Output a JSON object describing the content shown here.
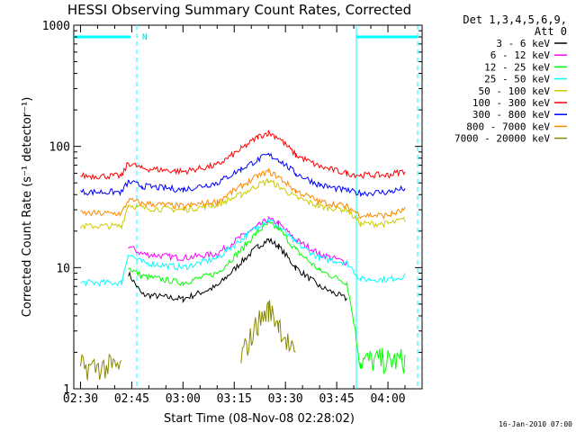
{
  "chart_data": {
    "type": "line",
    "title": "HESSI Observing Summary Count Rates, Corrected",
    "xlabel": "Start Time (08-Nov-08 02:28:02)",
    "ylabel": "Corrected Count Rate (s⁻¹ detector⁻¹)",
    "y_scale": "log",
    "ylim": [
      1,
      1000
    ],
    "xlim": [
      "02:28:02",
      "04:10:00"
    ],
    "x_ticks": [
      "02:30",
      "02:45",
      "03:00",
      "03:15",
      "03:30",
      "03:45",
      "04:00"
    ],
    "y_ticks": [
      "1",
      "10",
      "100",
      "1000"
    ],
    "legend_header": [
      "Det 1,3,4,5,6,9,",
      "Att 0"
    ],
    "legend_position": "right",
    "timestamp": "16-Jan-2010 07:00",
    "marker_label": "N",
    "x_time": [
      "02:30",
      "02:42",
      "02:44",
      "02:48",
      "03:00",
      "03:10",
      "03:17",
      "03:22",
      "03:25",
      "03:28",
      "03:33",
      "03:40",
      "03:48",
      "03:52",
      "04:00",
      "04:05"
    ],
    "series": [
      {
        "name": "3 - 6 keV",
        "color": "#000000",
        "values": [
          null,
          null,
          9,
          6,
          5.5,
          7,
          11,
          15,
          17,
          15,
          10,
          7,
          5.5,
          null,
          null,
          null
        ]
      },
      {
        "name": "6 - 12 keV",
        "color": "#ff00ff",
        "values": [
          null,
          null,
          15,
          13,
          12,
          13,
          18,
          22,
          25,
          23,
          17,
          13,
          11,
          null,
          null,
          null
        ]
      },
      {
        "name": "12 - 25 keV",
        "color": "#00ff00",
        "values": [
          null,
          null,
          10,
          8.5,
          7.5,
          9,
          14,
          20,
          23,
          21,
          14,
          9.5,
          7.5,
          1.7,
          1.7,
          1.7
        ]
      },
      {
        "name": "25 - 50 keV",
        "color": "#00ffff",
        "values": [
          7.5,
          7.5,
          13,
          11,
          10,
          12,
          17,
          22,
          25,
          22,
          16,
          12,
          11,
          8,
          8,
          8.5
        ]
      },
      {
        "name": "50 - 100 keV",
        "color": "#cccc00",
        "values": [
          22,
          22,
          33,
          31,
          30,
          33,
          40,
          48,
          52,
          47,
          38,
          32,
          30,
          23,
          23,
          25
        ]
      },
      {
        "name": "100 - 300 keV",
        "color": "#ff0000",
        "values": [
          57,
          57,
          73,
          66,
          62,
          70,
          95,
          120,
          130,
          118,
          85,
          68,
          60,
          58,
          58,
          63
        ]
      },
      {
        "name": "300 - 800 keV",
        "color": "#0000ff",
        "values": [
          42,
          42,
          51,
          47,
          44,
          50,
          65,
          78,
          85,
          78,
          60,
          48,
          43,
          41,
          42,
          45
        ]
      },
      {
        "name": "800 - 7000 keV",
        "color": "#ff8800",
        "values": [
          28,
          28,
          36,
          34,
          32,
          35,
          47,
          57,
          62,
          56,
          43,
          35,
          32,
          27,
          27,
          30
        ]
      },
      {
        "name": "7000 - 20000 keV",
        "color": "#888800",
        "values": [
          1.5,
          1.5,
          null,
          null,
          null,
          null,
          1.8,
          3.5,
          4.5,
          3.5,
          1.7,
          null,
          null,
          null,
          null,
          null
        ]
      }
    ]
  }
}
